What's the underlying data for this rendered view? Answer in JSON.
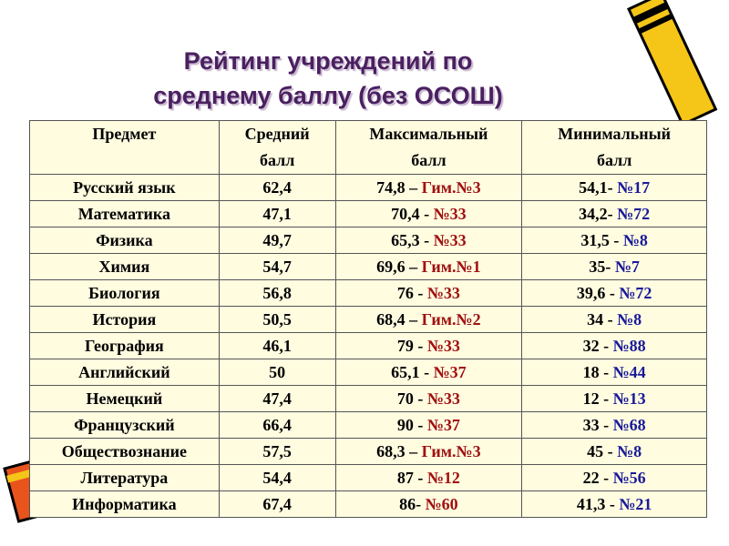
{
  "header": {
    "title_line1": "Рейтинг учреждений по",
    "title_line2": "среднему баллу (без ОСОШ)"
  },
  "table": {
    "columns": [
      [
        "Предмет"
      ],
      [
        "Средний",
        "балл"
      ],
      [
        "Максимальный",
        "балл"
      ],
      [
        "Минимальный",
        "балл"
      ]
    ],
    "rows": [
      [
        "Русский язык",
        "62,4",
        "74,8 –",
        "Гим.№3",
        "54,1-",
        "№17"
      ],
      [
        "Математика",
        "47,1",
        "70,4 -",
        "№33",
        "34,2-",
        "№72"
      ],
      [
        "Физика",
        "49,7",
        "65,3 -",
        "№33",
        "31,5 -",
        "№8"
      ],
      [
        "Химия",
        "54,7",
        "69,6 –",
        "Гим.№1",
        "35-",
        "№7"
      ],
      [
        "Биология",
        "56,8",
        "76 -",
        "№33",
        "39,6 -",
        "№72"
      ],
      [
        "История",
        "50,5",
        "68,4 –",
        "Гим.№2",
        "34 -",
        "№8"
      ],
      [
        "География",
        "46,1",
        "79 -",
        "№33",
        "32 -",
        "№88"
      ],
      [
        "Английский",
        "50",
        "65,1 -",
        "№37",
        "18 -",
        "№44"
      ],
      [
        "Немецкий",
        "47,4",
        "70 -",
        "№33",
        "12 -",
        "№13"
      ],
      [
        "Французский",
        "66,4",
        "90 -",
        "№37",
        "33 -",
        "№68"
      ],
      [
        "Обществознание",
        "57,5",
        "68,3 –",
        "Гим.№3",
        "45 -",
        "№8"
      ],
      [
        "Литература",
        "54,4",
        "87 -",
        "№12",
        "22 -",
        "№56"
      ],
      [
        "Информатика",
        "67,4",
        "86-",
        "№60",
        "41,3 -",
        "№21"
      ]
    ]
  }
}
